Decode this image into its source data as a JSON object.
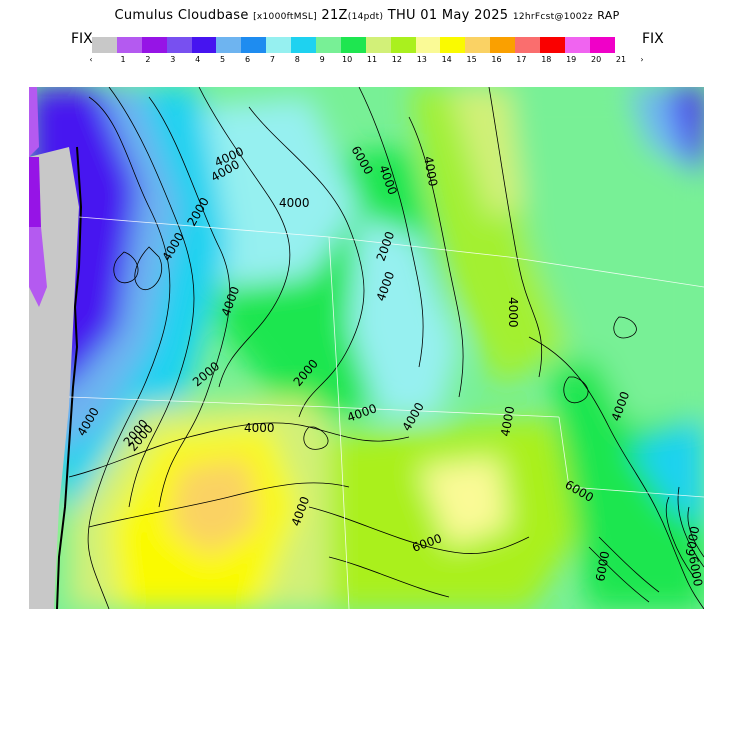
{
  "title": {
    "product": "Cumulus Cloudbase",
    "units": "[x1000ftMSL]",
    "valid_hour": "21Z",
    "local_time": "(14pdt)",
    "valid_date": "THU 01 May 2025",
    "forecast": "12hrFcst@1002z",
    "model": "RAP"
  },
  "legend": {
    "fix_left": "FIX",
    "fix_right": "FIX",
    "left_arrow": "‹",
    "right_arrow": "›",
    "swatches": [
      "#c8c8c8",
      "#b45af0",
      "#9614e6",
      "#7850f0",
      "#4614f0",
      "#6eb4f0",
      "#1e8cf0",
      "#96f0f0",
      "#1ed2f0",
      "#78f096",
      "#1ee650",
      "#d2f078",
      "#aaf01e",
      "#fafa96",
      "#fafa00",
      "#fad264",
      "#faa000",
      "#fa6e6e",
      "#fa0000",
      "#f064f0",
      "#f000c8"
    ],
    "tick_labels": [
      "1",
      "2",
      "3",
      "4",
      "5",
      "6",
      "7",
      "8",
      "9",
      "10",
      "11",
      "12",
      "13",
      "14",
      "15",
      "16",
      "17",
      "18",
      "19",
      "20",
      "21"
    ]
  },
  "map": {
    "contour_labels": [
      "6000",
      "4000",
      "4000",
      "2000",
      "2000",
      "4000",
      "4000",
      "2000",
      "2000",
      "4000",
      "2000",
      "4000",
      "4000",
      "4000",
      "4000",
      "4000",
      "2000",
      "4000",
      "4000",
      "4000",
      "6000",
      "4000",
      "4000",
      "4000",
      "6000",
      "6000",
      "6000",
      "6000"
    ],
    "region": "Pacific Northwest / Northern Rockies"
  }
}
